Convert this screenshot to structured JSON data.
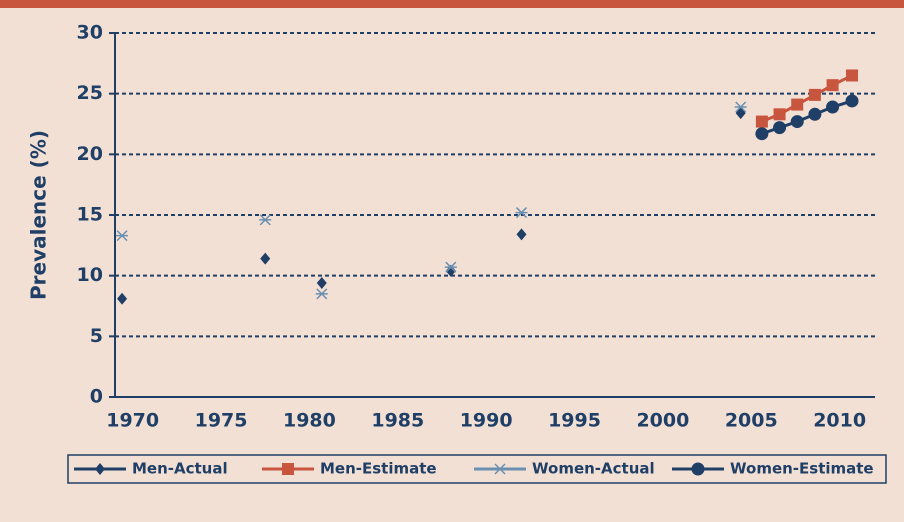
{
  "chart_data": {
    "type": "scatter",
    "y_label": "Prevalence (%)",
    "xlim": [
      1969,
      2012
    ],
    "xticks": [
      1970,
      1975,
      1980,
      1985,
      1990,
      1995,
      2000,
      2005,
      2010
    ],
    "ylim": [
      0,
      30
    ],
    "yticks": [
      0,
      5,
      10,
      15,
      20,
      25,
      30
    ],
    "grid": true,
    "legend": "bottom",
    "series": [
      {
        "name": "Men-Actual",
        "color": "#1f3f66",
        "marker": "diamond",
        "line": false,
        "x": [
          1969.4,
          1977.5,
          1980.7,
          1988.0,
          1992.0,
          2004.4
        ],
        "values": [
          8.1,
          11.4,
          9.4,
          10.4,
          13.4,
          23.4
        ]
      },
      {
        "name": "Men-Estimate",
        "color": "#c8553d",
        "marker": "square",
        "line": true,
        "x": [
          2005.6,
          2006.6,
          2007.6,
          2008.6,
          2009.6,
          2010.7
        ],
        "values": [
          22.7,
          23.3,
          24.1,
          24.9,
          25.7,
          26.5
        ]
      },
      {
        "name": "Women-Actual",
        "color": "#6a8fb0",
        "marker": "star",
        "line": false,
        "x": [
          1969.4,
          1977.5,
          1980.7,
          1988.0,
          1992.0,
          2004.4
        ],
        "values": [
          13.3,
          14.6,
          8.5,
          10.7,
          15.2,
          23.9
        ]
      },
      {
        "name": "Women-Estimate",
        "color": "#1f3f66",
        "marker": "circle",
        "line": true,
        "x": [
          2005.6,
          2006.6,
          2007.6,
          2008.6,
          2009.6,
          2010.7
        ],
        "values": [
          21.7,
          22.2,
          22.7,
          23.3,
          23.9,
          24.4
        ]
      }
    ]
  }
}
